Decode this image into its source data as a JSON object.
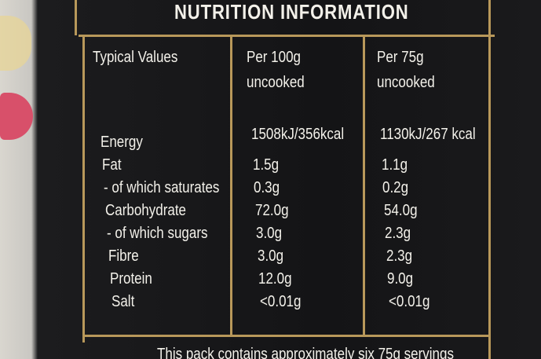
{
  "header": {
    "title": "NUTRITION INFORMATION"
  },
  "table": {
    "columns": [
      [
        "Typical Values"
      ],
      [
        "Per 100g",
        "uncooked"
      ],
      [
        "Per 75g",
        "uncooked"
      ]
    ],
    "rows": [
      [
        "Energy",
        "1508kJ/356kcal",
        "1130kJ/267 kcal"
      ],
      [
        "Fat",
        "1.5g",
        "1.1g"
      ],
      [
        "- of which saturates",
        "0.3g",
        "0.2g"
      ],
      [
        "Carbohydrate",
        "72.0g",
        "54.0g"
      ],
      [
        "- of which sugars",
        "3.0g",
        "2.3g"
      ],
      [
        "Fibre",
        "3.0g",
        "2.3g"
      ],
      [
        "Protein",
        "12.0g",
        "9.0g"
      ],
      [
        "Salt",
        "<0.01g",
        "<0.01g"
      ]
    ]
  },
  "footer": {
    "note": "This pack contains approximately six 75g servings"
  }
}
